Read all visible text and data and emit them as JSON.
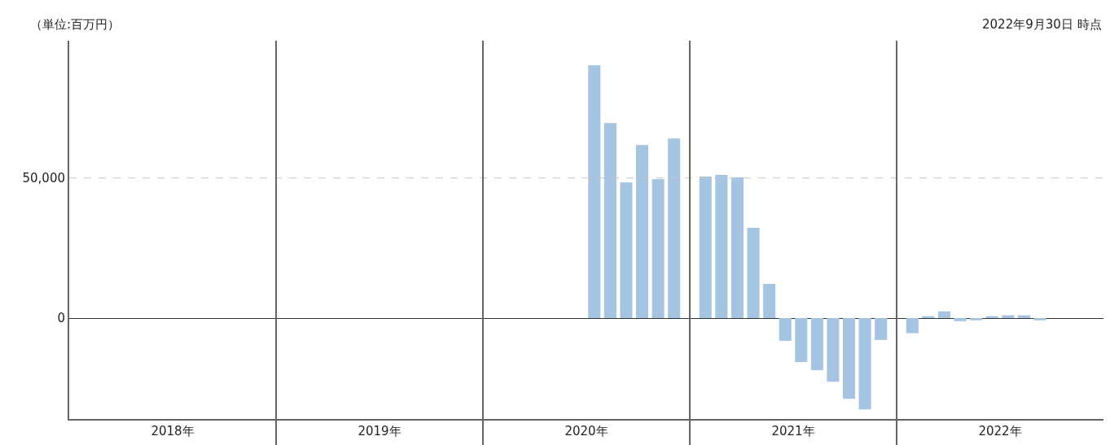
{
  "chart_data": {
    "type": "bar",
    "categories": [
      "2018年",
      "2019年",
      "2020年",
      "2021年",
      "2022年"
    ],
    "series": [
      {
        "color": "#a5c4e1",
        "values": [
          null,
          null,
          null,
          50500,
          -5400
        ]
      },
      {
        "color": "#a5c4e1",
        "values": [
          null,
          null,
          null,
          51100,
          700
        ]
      },
      {
        "color": "#a5c4e1",
        "values": [
          null,
          null,
          null,
          50200,
          2400
        ]
      },
      {
        "color": "#a5c4e1",
        "values": [
          null,
          null,
          null,
          32200,
          -1100
        ]
      },
      {
        "color": "#a5c4e1",
        "values": [
          null,
          null,
          null,
          12200,
          -800
        ]
      },
      {
        "color": "#a5c4e1",
        "values": [
          null,
          null,
          null,
          -8100,
          700
        ]
      },
      {
        "color": "#a5c4e1",
        "values": [
          null,
          null,
          90200,
          -15700,
          1000
        ]
      },
      {
        "color": "#a5c4e1",
        "values": [
          null,
          null,
          69600,
          -18600,
          1000
        ]
      },
      {
        "color": "#a5c4e1",
        "values": [
          null,
          null,
          48400,
          -22700,
          -800
        ]
      },
      {
        "color": "#a5c4e1",
        "values": [
          null,
          null,
          61800,
          -28800,
          null
        ]
      },
      {
        "color": "#a5c4e1",
        "values": [
          null,
          null,
          49600,
          -32600,
          null
        ]
      },
      {
        "color": "#a5c4e1",
        "values": [
          null,
          null,
          64100,
          -7800,
          null
        ]
      }
    ],
    "ylim": [
      -36000,
      99000
    ],
    "yticks": [
      0,
      {
        "value": 50000,
        "label": "50,000"
      }
    ],
    "grid": "x",
    "ref_lines": [
      {
        "axis": "y",
        "value": 50000,
        "color": "#c8c8c8",
        "line_style": "dashed"
      }
    ],
    "annotations": [
      "（単位:百万円）",
      "2022年9月30日 時点"
    ]
  }
}
